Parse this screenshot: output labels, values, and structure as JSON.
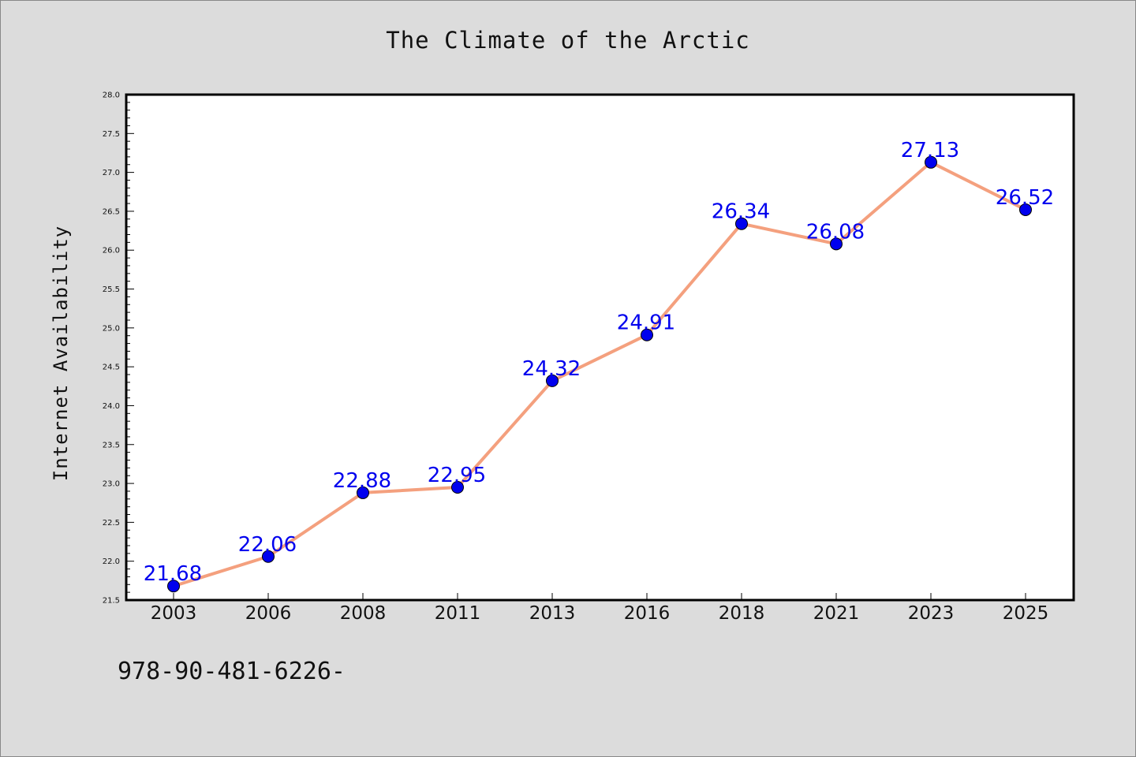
{
  "chart_data": {
    "type": "line",
    "title": "The Climate of the Arctic",
    "xlabel": "",
    "ylabel": "Internet Availability",
    "categories": [
      "2003",
      "2006",
      "2008",
      "2011",
      "2013",
      "2016",
      "2018",
      "2021",
      "2023",
      "2025"
    ],
    "series": [
      {
        "values": [
          21.68,
          22.06,
          22.88,
          22.95,
          24.32,
          24.91,
          26.34,
          26.08,
          27.13,
          26.52
        ],
        "line_color": "#f4a07e",
        "marker_color": "#0000ee"
      }
    ],
    "data_labels": [
      "21.68",
      "22.06",
      "22.88",
      "22.95",
      "24.32",
      "24.91",
      "26.34",
      "26.08",
      "27.13",
      "26.52"
    ],
    "ylim": [
      21.5,
      28.0
    ],
    "yticks": [
      "21.5",
      "22.0",
      "22.5",
      "23.0",
      "23.5",
      "24.0",
      "24.5",
      "25.0",
      "25.5",
      "26.0",
      "26.5",
      "27.0",
      "27.5",
      "28.0"
    ],
    "grid": false,
    "legend": "none"
  },
  "footer_text": "978-90-481-6226-"
}
